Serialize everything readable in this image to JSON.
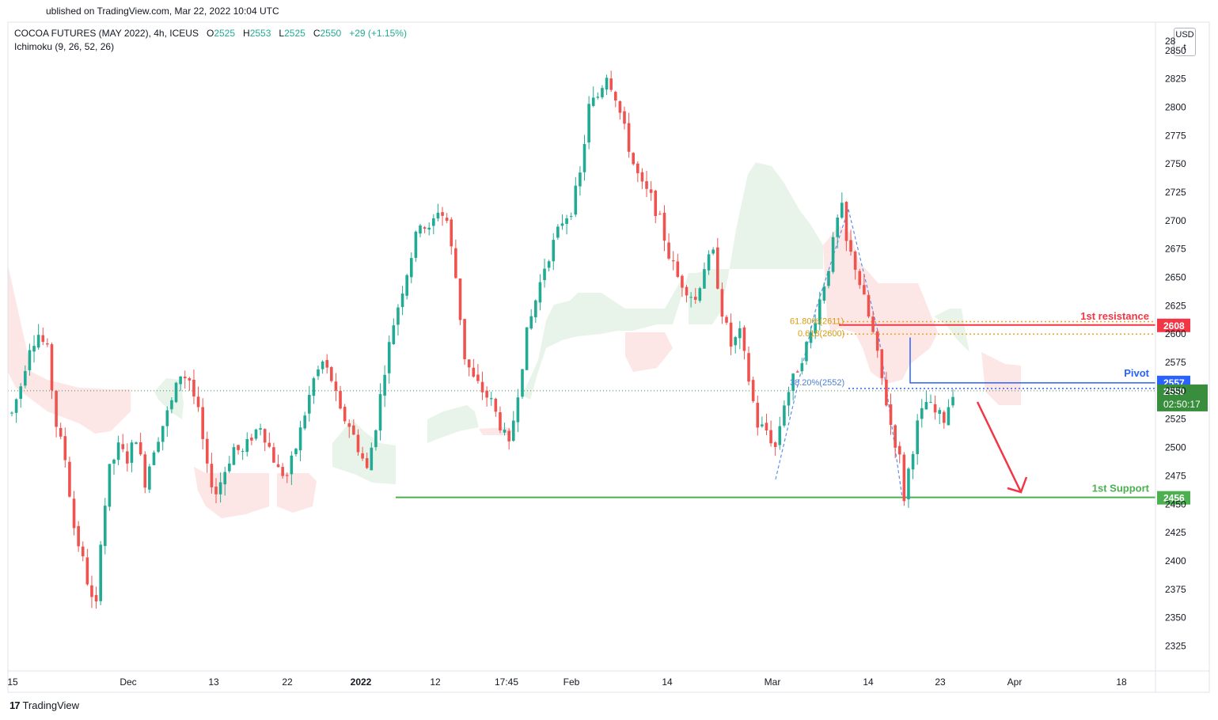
{
  "header": {
    "published": "ublished on TradingView.com, Mar 22, 2022 10:04 UTC",
    "symbol": "COCOA FUTURES (MAY 2022), 4h, ICEUS",
    "o_label": "O",
    "o_value": "2525",
    "h_label": "H",
    "h_value": "2553",
    "l_label": "L",
    "l_value": "2525",
    "c_label": "C",
    "c_value": "2550",
    "change": "+29 (+1.15%)",
    "indicator": "Ichimoku (9, 26, 52, 26)",
    "currency": "USD",
    "currency_sub": "t"
  },
  "footer": {
    "brand_logo": "17",
    "brand_name": "TradingView"
  },
  "colors": {
    "up": "#22ab94",
    "down": "#ef5350",
    "resistance": "#f23645",
    "pivot": "#2962ff",
    "support": "#4caf50",
    "fib": "#f2a31b",
    "cloud_green": "#e7f3e8",
    "cloud_red": "#fde5e5",
    "arrow": "#f23645",
    "current_price": "#388e3c"
  },
  "chart_data": {
    "type": "candlestick",
    "timeframe": "4h",
    "x_ticks": [
      "15",
      "Dec",
      "13",
      "22",
      "2022",
      "12",
      "17:45",
      "Feb",
      "14",
      "Mar",
      "14",
      "23",
      "Apr",
      "18"
    ],
    "y_ticks": [
      2850,
      2825,
      2800,
      2775,
      2750,
      2725,
      2700,
      2675,
      2650,
      2625,
      2600,
      2575,
      2550,
      2525,
      2500,
      2475,
      2450,
      2425,
      2400,
      2375,
      2350,
      2325
    ],
    "y_top_partial_tick": "28",
    "ylim": [
      2303,
      2875
    ],
    "price_path": [
      [
        0,
        2530
      ],
      [
        2,
        2555
      ],
      [
        4,
        2590
      ],
      [
        6,
        2600
      ],
      [
        8,
        2585
      ],
      [
        10,
        2520
      ],
      [
        12,
        2490
      ],
      [
        14,
        2430
      ],
      [
        16,
        2400
      ],
      [
        18,
        2365
      ],
      [
        19,
        2360
      ],
      [
        20,
        2420
      ],
      [
        22,
        2480
      ],
      [
        24,
        2500
      ],
      [
        26,
        2490
      ],
      [
        28,
        2510
      ],
      [
        30,
        2470
      ],
      [
        32,
        2500
      ],
      [
        34,
        2520
      ],
      [
        36,
        2540
      ],
      [
        38,
        2565
      ],
      [
        40,
        2560
      ],
      [
        42,
        2530
      ],
      [
        44,
        2480
      ],
      [
        46,
        2460
      ],
      [
        48,
        2480
      ],
      [
        50,
        2500
      ],
      [
        52,
        2495
      ],
      [
        54,
        2510
      ],
      [
        56,
        2520
      ],
      [
        58,
        2500
      ],
      [
        60,
        2480
      ],
      [
        62,
        2475
      ],
      [
        64,
        2500
      ],
      [
        66,
        2530
      ],
      [
        68,
        2560
      ],
      [
        70,
        2575
      ],
      [
        72,
        2560
      ],
      [
        74,
        2530
      ],
      [
        76,
        2520
      ],
      [
        78,
        2500
      ],
      [
        80,
        2480
      ],
      [
        82,
        2520
      ],
      [
        84,
        2570
      ],
      [
        86,
        2610
      ],
      [
        88,
        2640
      ],
      [
        90,
        2670
      ],
      [
        92,
        2700
      ],
      [
        94,
        2690
      ],
      [
        96,
        2710
      ],
      [
        98,
        2700
      ],
      [
        100,
        2650
      ],
      [
        102,
        2580
      ],
      [
        104,
        2560
      ],
      [
        106,
        2550
      ],
      [
        108,
        2540
      ],
      [
        110,
        2520
      ],
      [
        112,
        2500
      ],
      [
        114,
        2550
      ],
      [
        116,
        2600
      ],
      [
        118,
        2630
      ],
      [
        120,
        2660
      ],
      [
        122,
        2680
      ],
      [
        124,
        2700
      ],
      [
        126,
        2710
      ],
      [
        128,
        2740
      ],
      [
        130,
        2800
      ],
      [
        132,
        2810
      ],
      [
        134,
        2830
      ],
      [
        136,
        2810
      ],
      [
        138,
        2780
      ],
      [
        140,
        2750
      ],
      [
        142,
        2730
      ],
      [
        144,
        2720
      ],
      [
        146,
        2700
      ],
      [
        148,
        2670
      ],
      [
        150,
        2650
      ],
      [
        152,
        2640
      ],
      [
        154,
        2630
      ],
      [
        156,
        2660
      ],
      [
        158,
        2670
      ],
      [
        160,
        2620
      ],
      [
        162,
        2590
      ],
      [
        164,
        2600
      ],
      [
        166,
        2560
      ],
      [
        168,
        2520
      ],
      [
        170,
        2515
      ],
      [
        172,
        2500
      ],
      [
        174,
        2540
      ],
      [
        176,
        2560
      ],
      [
        178,
        2580
      ],
      [
        180,
        2600
      ],
      [
        182,
        2630
      ],
      [
        184,
        2660
      ],
      [
        186,
        2700
      ],
      [
        187,
        2710
      ],
      [
        188,
        2680
      ],
      [
        190,
        2660
      ],
      [
        192,
        2630
      ],
      [
        194,
        2600
      ],
      [
        196,
        2560
      ],
      [
        198,
        2520
      ],
      [
        200,
        2490
      ],
      [
        201,
        2456
      ],
      [
        202,
        2480
      ],
      [
        204,
        2520
      ],
      [
        206,
        2540
      ],
      [
        208,
        2530
      ],
      [
        210,
        2525
      ],
      [
        212,
        2550
      ]
    ],
    "path_note_units": "bar index, price",
    "last_price": 2550,
    "countdown": "02:50:17",
    "levels": [
      {
        "name": "1st resistance",
        "value": 2608,
        "label": "1st resistance",
        "badge": "2608"
      },
      {
        "name": "Pivot",
        "value": 2557,
        "label": "Pivot",
        "badge": "2557"
      },
      {
        "name": "1st Support",
        "value": 2456,
        "label": "1st Support",
        "badge": "2456"
      }
    ],
    "fib_labels": [
      {
        "text": "61.80%(2611)",
        "value": 2611
      },
      {
        "text": "0.618(2600)",
        "value": 2600
      },
      {
        "text": "38.20%(2552)",
        "value": 2552
      }
    ],
    "grid": false,
    "legend": "none"
  }
}
